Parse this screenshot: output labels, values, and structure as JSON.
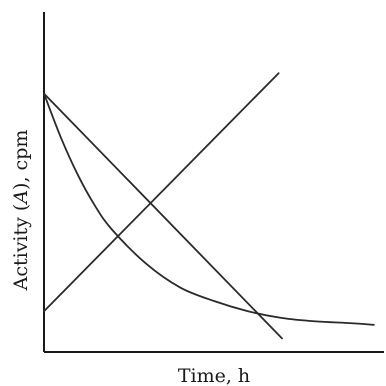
{
  "chart_data": {
    "type": "line",
    "xlabel": "Time, h",
    "ylabel_parts": [
      "Activity (",
      "A",
      "), cpm"
    ],
    "ylabel": "Activity (A), cpm",
    "xlim": [
      0,
      10
    ],
    "ylim": [
      0,
      10
    ],
    "grid": false,
    "legend": "none",
    "series": [
      {
        "x": [
          0,
          6.9
        ],
        "y": [
          1.2,
          8.2
        ]
      },
      {
        "x": [
          0,
          7.0
        ],
        "y": [
          7.6,
          0.4
        ]
      },
      {
        "x": [
          0,
          0.5,
          1,
          1.5,
          2,
          3,
          4,
          5,
          6,
          7,
          8,
          9,
          9.7
        ],
        "y": [
          7.6,
          6.3,
          5.2,
          4.3,
          3.6,
          2.6,
          1.9,
          1.5,
          1.2,
          1.0,
          0.9,
          0.85,
          0.8
        ]
      }
    ]
  }
}
